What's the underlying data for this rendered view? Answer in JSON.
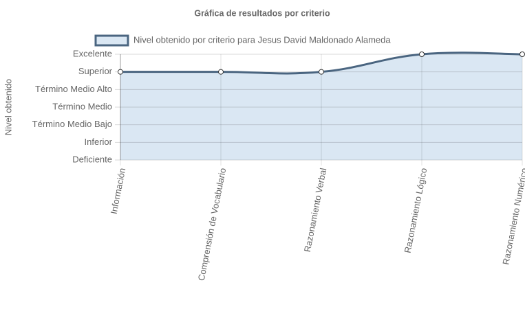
{
  "chart_data": {
    "type": "line",
    "title": "Gráfica de resultados por criterio",
    "y_label": "Nivel obtenido",
    "categories": [
      "Información",
      "Comprensión de Vocabulario",
      "Razonamiento Verbal",
      "Razonamiento Lógico",
      "Razonamiento Numérico"
    ],
    "series": [
      {
        "name": "Nivel obtenido por criterio para Jesus David Maldonado Alameda",
        "color": "#4a6580",
        "fill": "#dae7f3",
        "values": [
          5,
          5,
          5,
          6,
          6
        ]
      }
    ],
    "ylim": [
      0,
      6
    ],
    "yticks": [
      {
        "value": 0,
        "label": "Deficiente"
      },
      {
        "value": 1,
        "label": "Inferior"
      },
      {
        "value": 2,
        "label": "Término Medio Bajo"
      },
      {
        "value": 3,
        "label": "Término Medio"
      },
      {
        "value": 4,
        "label": "Término Medio Alto"
      },
      {
        "value": 5,
        "label": "Superior"
      },
      {
        "value": 6,
        "label": "Excelente"
      }
    ],
    "grid": true
  }
}
